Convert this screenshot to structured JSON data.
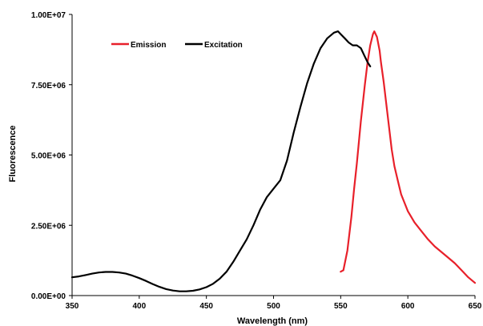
{
  "chart_data": {
    "type": "line",
    "title": "",
    "xlabel": "Wavelength (nm)",
    "ylabel": "Fluorescence",
    "xlim": [
      350,
      650
    ],
    "ylim": [
      0,
      10000000
    ],
    "x_ticks": [
      350,
      400,
      450,
      500,
      550,
      600,
      650
    ],
    "x_tick_labels": [
      "350",
      "400",
      "450",
      "500",
      "550",
      "600",
      "650"
    ],
    "y_ticks": [
      0,
      2500000,
      5000000,
      7500000,
      10000000
    ],
    "y_tick_labels": [
      "0.00E+00",
      "2.50E+06",
      "5.00E+06",
      "7.50E+06",
      "1.00E+07"
    ],
    "grid": false,
    "legend_position": "top-left",
    "series": [
      {
        "name": "Emission",
        "color": "#e8202a",
        "points": [
          [
            550,
            850000
          ],
          [
            552,
            900000
          ],
          [
            555,
            1600000
          ],
          [
            558,
            2800000
          ],
          [
            560,
            3800000
          ],
          [
            562,
            4700000
          ],
          [
            565,
            6200000
          ],
          [
            568,
            7500000
          ],
          [
            570,
            8300000
          ],
          [
            572,
            8900000
          ],
          [
            574,
            9300000
          ],
          [
            575,
            9400000
          ],
          [
            577,
            9200000
          ],
          [
            579,
            8700000
          ],
          [
            580,
            8300000
          ],
          [
            582,
            7600000
          ],
          [
            585,
            6400000
          ],
          [
            588,
            5200000
          ],
          [
            590,
            4600000
          ],
          [
            593,
            4000000
          ],
          [
            595,
            3600000
          ],
          [
            600,
            3000000
          ],
          [
            605,
            2600000
          ],
          [
            610,
            2300000
          ],
          [
            615,
            2000000
          ],
          [
            620,
            1750000
          ],
          [
            625,
            1550000
          ],
          [
            630,
            1350000
          ],
          [
            635,
            1150000
          ],
          [
            640,
            900000
          ],
          [
            645,
            650000
          ],
          [
            650,
            450000
          ]
        ]
      },
      {
        "name": "Excitation",
        "color": "#000000",
        "points": [
          [
            350,
            650000
          ],
          [
            355,
            680000
          ],
          [
            360,
            730000
          ],
          [
            365,
            780000
          ],
          [
            370,
            820000
          ],
          [
            375,
            840000
          ],
          [
            380,
            840000
          ],
          [
            385,
            820000
          ],
          [
            390,
            780000
          ],
          [
            395,
            710000
          ],
          [
            400,
            620000
          ],
          [
            405,
            520000
          ],
          [
            410,
            410000
          ],
          [
            415,
            310000
          ],
          [
            420,
            230000
          ],
          [
            425,
            180000
          ],
          [
            430,
            150000
          ],
          [
            435,
            150000
          ],
          [
            440,
            170000
          ],
          [
            445,
            220000
          ],
          [
            450,
            300000
          ],
          [
            455,
            420000
          ],
          [
            460,
            600000
          ],
          [
            465,
            850000
          ],
          [
            470,
            1200000
          ],
          [
            475,
            1600000
          ],
          [
            480,
            2000000
          ],
          [
            485,
            2500000
          ],
          [
            490,
            3050000
          ],
          [
            495,
            3500000
          ],
          [
            500,
            3800000
          ],
          [
            505,
            4100000
          ],
          [
            510,
            4800000
          ],
          [
            515,
            5800000
          ],
          [
            520,
            6700000
          ],
          [
            525,
            7550000
          ],
          [
            530,
            8250000
          ],
          [
            535,
            8800000
          ],
          [
            540,
            9150000
          ],
          [
            545,
            9350000
          ],
          [
            548,
            9400000
          ],
          [
            550,
            9300000
          ],
          [
            553,
            9150000
          ],
          [
            556,
            9000000
          ],
          [
            559,
            8900000
          ],
          [
            562,
            8900000
          ],
          [
            565,
            8800000
          ],
          [
            568,
            8500000
          ],
          [
            570,
            8300000
          ],
          [
            572,
            8150000
          ]
        ]
      }
    ]
  }
}
